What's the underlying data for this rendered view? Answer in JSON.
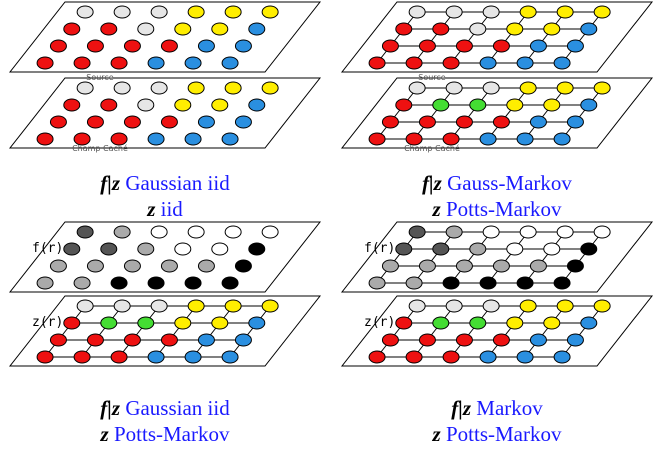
{
  "panels": [
    {
      "top_label": "Source",
      "bottom_label": "Champ Caché",
      "caption_line1": {
        "var": "f|z",
        "text": "Gaussian iid"
      },
      "caption_line2": {
        "var": "z",
        "text": "iid"
      }
    },
    {
      "top_label": "Source",
      "bottom_label": "Champ Caché",
      "caption_line1": {
        "var": "f|z",
        "text": "Gauss-Markov"
      },
      "caption_line2": {
        "var": "z",
        "text": "Potts-Markov"
      }
    },
    {
      "top_label": "f(r)",
      "bottom_label": "z(r)",
      "caption_line1": {
        "var": "f|z",
        "text": "Gaussian iid"
      },
      "caption_line2": {
        "var": "z",
        "text": "Potts-Markov"
      }
    },
    {
      "top_label": "f(r)",
      "bottom_label": "z(r)",
      "caption_line1": {
        "var": "f|z",
        "text": "Markov"
      },
      "caption_line2": {
        "var": "z",
        "text": "Potts-Markov"
      }
    }
  ]
}
